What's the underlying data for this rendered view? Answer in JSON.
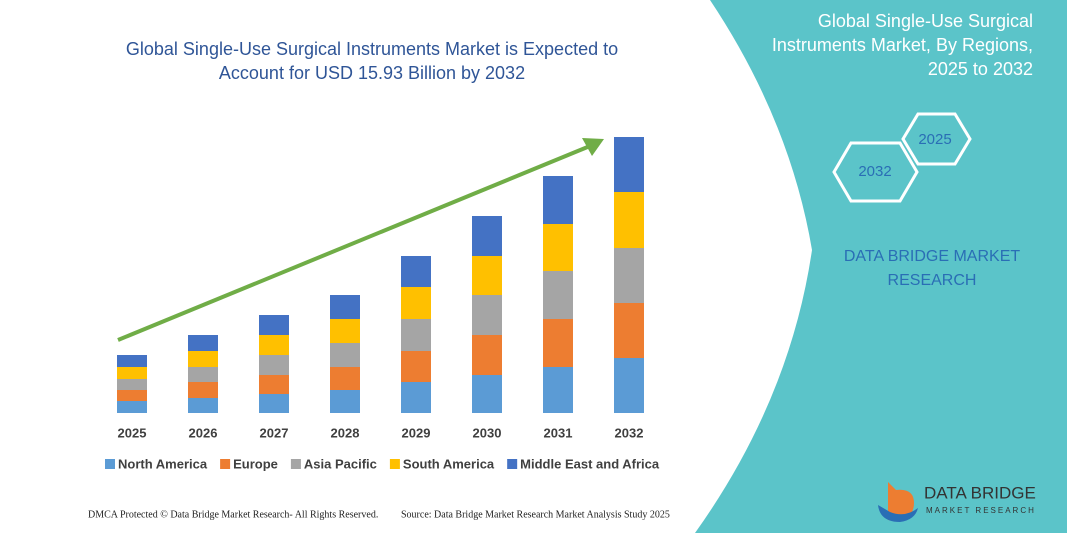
{
  "chart_data": {
    "type": "stacked-bar",
    "title": "Global Single-Use Surgical Instruments Market  is Expected to Account for USD 15.93 Billion by 2032",
    "categories": [
      "2025",
      "2026",
      "2027",
      "2028",
      "2029",
      "2030",
      "2031",
      "2032"
    ],
    "series": [
      {
        "name": "North America",
        "color": "#5b9bd5",
        "values": [
          12,
          15,
          19,
          23,
          31,
          38,
          46,
          55
        ]
      },
      {
        "name": "Europe",
        "color": "#ed7d31",
        "values": [
          11,
          16,
          19,
          23,
          31,
          40,
          48,
          55
        ]
      },
      {
        "name": "Asia Pacific",
        "color": "#a5a5a5",
        "values": [
          11,
          15,
          20,
          24,
          32,
          40,
          48,
          55
        ]
      },
      {
        "name": "South America",
        "color": "#ffc000",
        "values": [
          12,
          16,
          20,
          24,
          32,
          39,
          47,
          56
        ]
      },
      {
        "name": "Middle East and Africa",
        "color": "#4472c4",
        "values": [
          12,
          16,
          20,
          24,
          31,
          40,
          48,
          55
        ]
      }
    ]
  },
  "panel": {
    "title": "Global Single-Use Surgical Instruments Market, By Regions, 2025 to 2032",
    "hex_a": "2025",
    "hex_b": "2032",
    "brand": "DATA BRIDGE MARKET RESEARCH"
  },
  "footer": {
    "left": "DMCA Protected © Data Bridge Market Research- All Rights Reserved.",
    "right": "Source: Data Bridge Market Research Market Analysis Study 2025"
  },
  "logo": {
    "name": "DATA BRIDGE",
    "tagline": "MARKET RESEARCH"
  }
}
